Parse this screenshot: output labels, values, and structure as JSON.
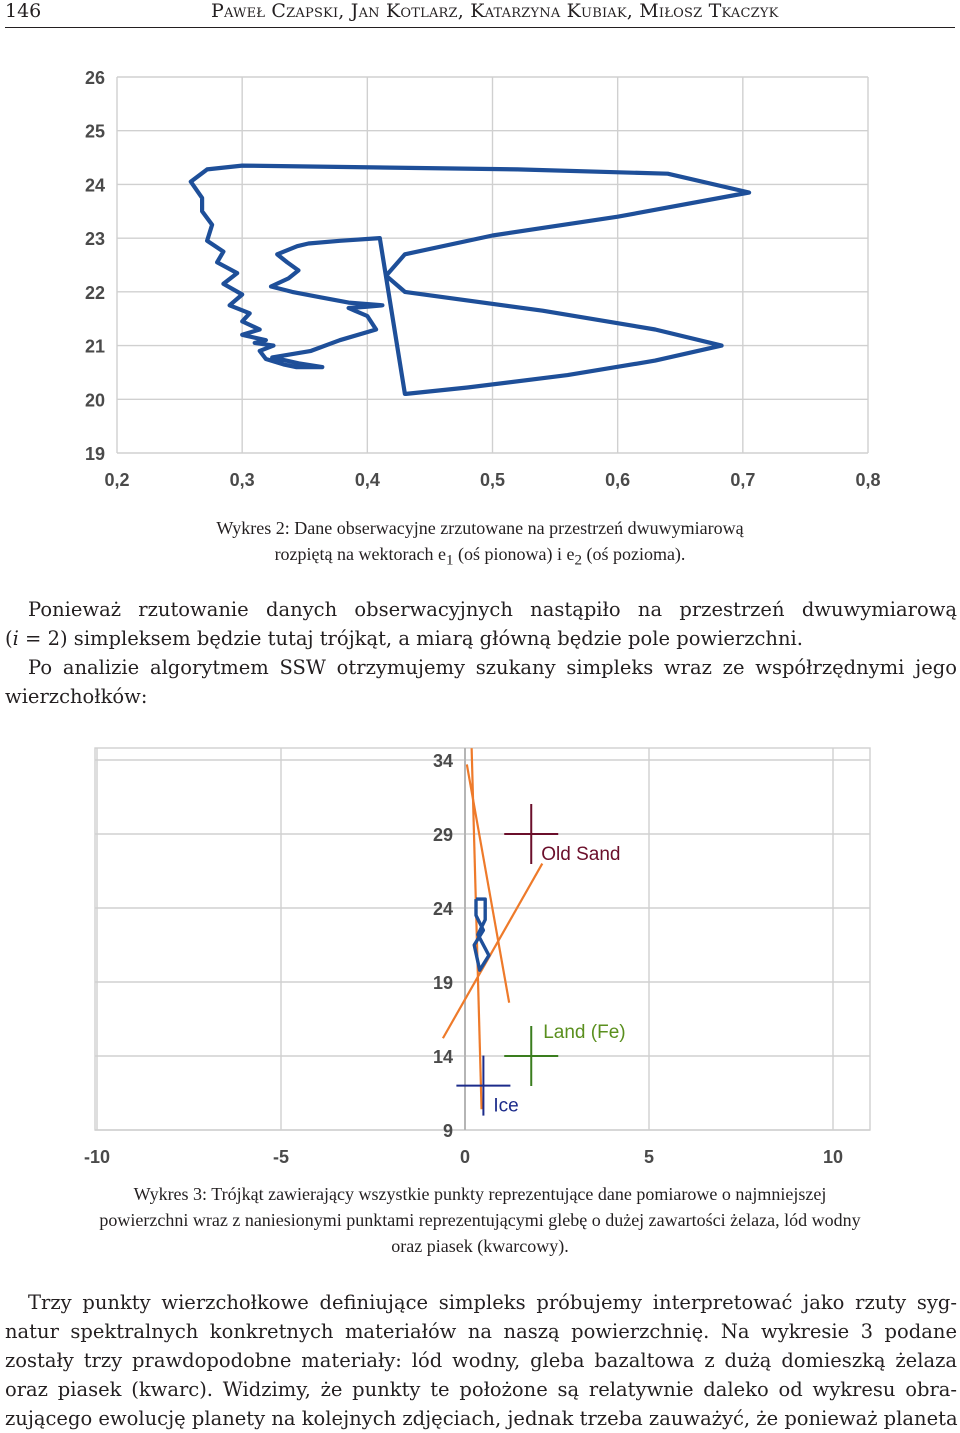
{
  "header": {
    "page_number": "146",
    "authors": "Paweł Czapski, Jan Kotlarz, Katarzyna Kubiak, Miłosz Tkaczyk"
  },
  "figure2": {
    "caption_line1": "Wykres 2: Dane obserwacyjne zrzutowane na przestrzeń dwuwymiarową",
    "caption_line2_a": "rozpiętą na wektorach e",
    "caption_sub1": "1",
    "caption_line2_b": " (oś pionowa) i e",
    "caption_sub2": "2",
    "caption_line2_c": " (oś pozioma)."
  },
  "paragraph1": {
    "l1": "Ponieważ rzutowanie danych obserwacyjnych nastąpiło na przestrzeń dwuwymiarową",
    "l2_a": "(",
    "l2_i": "i",
    "l2_b": " = 2) simpleksem będzie tutaj trójkąt, a miarą główną będzie pole powierzchni.",
    "l3": "Po analizie algorytmem SSW otrzymujemy szukany simpleks wraz ze współrzędnymi jego",
    "l4": "wierzchołków:"
  },
  "figure3": {
    "caption_line1": "Wykres 3: Trójkąt zawierający wszystkie punkty reprezentujące dane pomiarowe o najmniejszej",
    "caption_line2": "powierzchni wraz z naniesionymi punktami reprezentującymi glebę o dużej zawartości żelaza, lód wodny",
    "caption_line3": "oraz piasek (kwarcowy)."
  },
  "paragraph2": {
    "l1": "Trzy punkty wierzchołkowe definiujące simpleks próbujemy interpretować jako rzuty syg-",
    "l2": "natur spektralnych konkretnych materiałów na naszą powierzchnię. Na wykresie 3 podane",
    "l3": "zostały trzy prawdopodobne materiały: lód wodny, gleba bazaltowa z dużą domieszką żelaza",
    "l4": "oraz piasek (kwarc). Widzimy, że punkty te położone są relatywnie daleko od wykresu obra-",
    "l5": "zującego ewolucję planety na kolejnych zdjęciach, jednak trzeba zauważyć, że ponieważ planeta"
  },
  "chart_data": [
    {
      "type": "line",
      "title": "",
      "xlabel": "",
      "ylabel": "",
      "xlim": [
        0.2,
        0.8
      ],
      "ylim": [
        19,
        26
      ],
      "x_ticks": [
        "0,2",
        "0,3",
        "0,4",
        "0,5",
        "0,6",
        "0,7",
        "0,8"
      ],
      "y_ticks": [
        "19",
        "20",
        "21",
        "22",
        "23",
        "24",
        "25",
        "26"
      ],
      "grid": true,
      "line_color": "#1e4f99",
      "series": [
        {
          "x": [
            0.431,
            0.48,
            0.56,
            0.63,
            0.683,
            0.63,
            0.54,
            0.43,
            0.415,
            0.43,
            0.5,
            0.6,
            0.705,
            0.64,
            0.52,
            0.3,
            0.272,
            0.259,
            0.268,
            0.268,
            0.276,
            0.272,
            0.285,
            0.28,
            0.296,
            0.285,
            0.3,
            0.29,
            0.306,
            0.3,
            0.314,
            0.3,
            0.319,
            0.31,
            0.325,
            0.314,
            0.319,
            0.333,
            0.343,
            0.35,
            0.364,
            0.345,
            0.324,
            0.355,
            0.378,
            0.407,
            0.4,
            0.39,
            0.385,
            0.398,
            0.412,
            0.385,
            0.362,
            0.34,
            0.323,
            0.337,
            0.345,
            0.336,
            0.328,
            0.344,
            0.353,
            0.378,
            0.41,
            0.43
          ],
          "y": [
            20.1,
            20.22,
            20.45,
            20.72,
            21.0,
            21.3,
            21.65,
            22.0,
            22.3,
            22.7,
            23.05,
            23.4,
            23.85,
            24.2,
            24.28,
            24.35,
            24.28,
            24.05,
            23.75,
            23.5,
            23.25,
            22.95,
            22.75,
            22.55,
            22.35,
            22.15,
            21.95,
            21.75,
            21.6,
            21.45,
            21.3,
            21.2,
            21.1,
            21.05,
            21.0,
            20.9,
            20.75,
            20.65,
            20.6,
            20.6,
            20.6,
            20.67,
            20.78,
            20.9,
            21.1,
            21.3,
            21.55,
            21.65,
            21.7,
            21.72,
            21.75,
            21.8,
            21.9,
            22.0,
            22.1,
            22.25,
            22.4,
            22.55,
            22.7,
            22.85,
            22.9,
            22.95,
            23.0,
            20.1
          ]
        }
      ]
    },
    {
      "type": "scatter",
      "title": "",
      "xlabel": "",
      "ylabel": "",
      "xlim": [
        -10,
        10
      ],
      "ylim": [
        9,
        34
      ],
      "x_ticks": [
        "-10",
        "-5",
        "0",
        "5",
        "10"
      ],
      "y_ticks": [
        "34",
        "29",
        "24",
        "19",
        "14",
        "9"
      ],
      "grid": true,
      "points": [
        {
          "label": "Old Sand",
          "x": 1.8,
          "y": 29.0,
          "color": "#6b0f2b",
          "label_color": "#6b0f2b"
        },
        {
          "label": "Land (Fe)",
          "x": 1.8,
          "y": 14.0,
          "color": "#3a7d1e",
          "label_color": "#5a8f1e"
        },
        {
          "label": "Ice",
          "x": 0.5,
          "y": 12.0,
          "color": "#1c2b8a",
          "label_color": "#1c2b8a"
        }
      ],
      "simplex_lines": [
        {
          "x": [
            0.18,
            0.45
          ],
          "y": [
            34.8,
            10.4
          ],
          "color": "#ee7a2a"
        },
        {
          "x": [
            0.05,
            1.2
          ],
          "y": [
            33.7,
            17.6
          ],
          "color": "#ee7a2a"
        },
        {
          "x": [
            -0.6,
            2.1
          ],
          "y": [
            15.2,
            27.0
          ],
          "color": "#ee7a2a"
        }
      ],
      "data_outline": {
        "color": "#1e4f99",
        "x": [
          0.3,
          0.55,
          0.55,
          0.35,
          0.65,
          0.4,
          0.25,
          0.5,
          0.3,
          0.3
        ],
        "y": [
          24.6,
          24.6,
          23.2,
          22.2,
          20.8,
          19.8,
          21.5,
          22.5,
          23.5,
          24.6
        ]
      }
    }
  ]
}
